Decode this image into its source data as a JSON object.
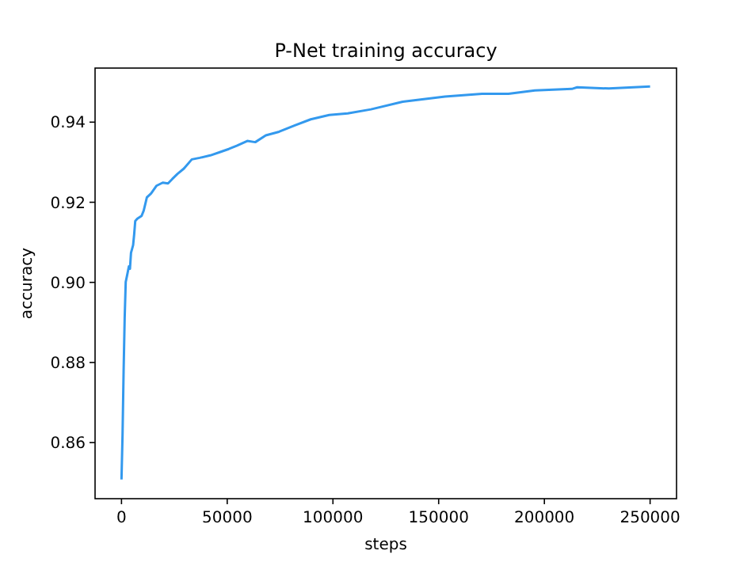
{
  "chart_data": {
    "type": "line",
    "title": "P-Net training accuracy",
    "xlabel": "steps",
    "ylabel": "accuracy",
    "x": [
      0,
      500,
      1000,
      1500,
      2000,
      2750,
      3500,
      4000,
      4500,
      5500,
      6000,
      6500,
      7500,
      9500,
      10500,
      12000,
      14000,
      16500,
      19500,
      22000,
      24000,
      26500,
      29500,
      33250,
      37000,
      42000,
      47000,
      50750,
      54500,
      59500,
      63250,
      68250,
      74500,
      82000,
      89500,
      98250,
      107000,
      118000,
      133000,
      153000,
      170500,
      183000,
      195500,
      213000,
      215500,
      230500,
      250000
    ],
    "series": [
      {
        "color": "#3399ee",
        "values": [
          0.8508,
          0.862,
          0.8778,
          0.891,
          0.9001,
          0.902,
          0.904,
          0.9034,
          0.9074,
          0.9093,
          0.912,
          0.9153,
          0.9159,
          0.9166,
          0.9179,
          0.9212,
          0.9222,
          0.9241,
          0.9249,
          0.9247,
          0.9258,
          0.9271,
          0.9284,
          0.9307,
          0.9311,
          0.9317,
          0.9326,
          0.9333,
          0.9341,
          0.9353,
          0.935,
          0.9367,
          0.9376,
          0.9392,
          0.9407,
          0.9418,
          0.9422,
          0.9432,
          0.9451,
          0.9464,
          0.9471,
          0.9471,
          0.9479,
          0.9483,
          0.9487,
          0.9484,
          0.9489
        ]
      }
    ],
    "xlim": [
      -12500,
      262500
    ],
    "ylim": [
      0.846,
      0.9535
    ],
    "xticks": [
      0,
      50000,
      100000,
      150000,
      200000,
      250000
    ],
    "yticks": [
      {
        "value": 0.86,
        "label": "0.86"
      },
      {
        "value": 0.88,
        "label": "0.88"
      },
      {
        "value": 0.9,
        "label": "0.90"
      },
      {
        "value": 0.92,
        "label": "0.92"
      },
      {
        "value": 0.94,
        "label": "0.94"
      }
    ],
    "grid": false,
    "marker": "none",
    "line_style": "solid"
  }
}
